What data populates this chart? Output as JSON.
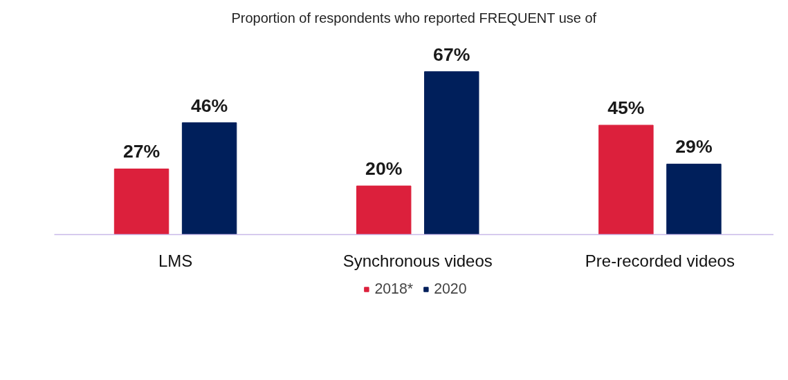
{
  "chart_data": {
    "type": "bar",
    "title": "Proportion of respondents who reported FREQUENT use of",
    "categories": [
      "LMS",
      "Synchronous videos",
      "Pre-recorded videos"
    ],
    "series": [
      {
        "name": "2018*",
        "color": "#dc203c",
        "values": [
          27,
          20,
          45
        ],
        "value_labels": [
          "27%",
          "20%",
          "45%"
        ]
      },
      {
        "name": "2020",
        "color": "#001f5b",
        "values": [
          46,
          67,
          29
        ],
        "value_labels": [
          "46%",
          "67%",
          "29%"
        ]
      }
    ],
    "grid": false,
    "legend": "bottom"
  }
}
